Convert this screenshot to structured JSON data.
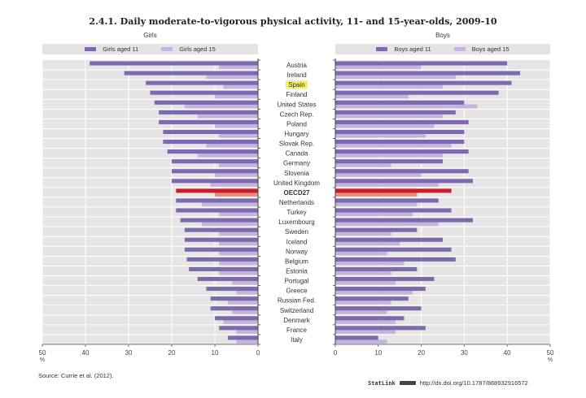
{
  "chart_data": {
    "type": "bar",
    "orientation": "horizontal",
    "title": "2.4.1. Daily moderate-to-vigorous physical activity, 11- and 15-year-olds, 2009-10",
    "unit_label": "%",
    "xlim": [
      0,
      50
    ],
    "x_ticks": [
      0,
      10,
      20,
      30,
      40,
      50
    ],
    "grid": true,
    "categories": [
      "Austria",
      "Ireland",
      "Spain",
      "Finland",
      "United States",
      "Czech Rep.",
      "Poland",
      "Hungary",
      "Slovak Rep.",
      "Canada",
      "Germany",
      "Slovenia",
      "United Kingdom",
      "OECD27",
      "Netherlands",
      "Turkey",
      "Luxembourg",
      "Sweden",
      "Iceland",
      "Norway",
      "Belgium",
      "Estonia",
      "Portugal",
      "Greece",
      "Russian Fed.",
      "Switzerland",
      "Denmark",
      "France",
      "Italy"
    ],
    "highlighted_category": "Spain",
    "average_category": "OECD27",
    "panels": [
      {
        "name": "Girls",
        "direction": "left",
        "legend_placement": "top",
        "series": [
          {
            "name": "Girls aged 11",
            "color": "#7d6aae",
            "average_color": "#c8202b",
            "values": [
              39,
              31,
              26,
              25,
              24,
              23,
              23,
              22,
              22,
              21,
              20,
              20,
              20,
              19,
              19,
              19,
              18,
              17,
              17,
              17,
              16.5,
              16,
              14,
              12,
              11,
              11,
              10,
              9,
              7
            ]
          },
          {
            "name": "Girls aged 15",
            "color": "#c4b5de",
            "average_color": "#f28a7a",
            "values": [
              9,
              12,
              8,
              10,
              17,
              14,
              10,
              9,
              12,
              14,
              9,
              10,
              11,
              10,
              13,
              9,
              13,
              9,
              9,
              9,
              9,
              9,
              6,
              5,
              7,
              6,
              8,
              5,
              5
            ]
          }
        ]
      },
      {
        "name": "Boys",
        "direction": "right",
        "legend_placement": "top",
        "series": [
          {
            "name": "Boys aged 11",
            "color": "#7d6aae",
            "average_color": "#c8202b",
            "values": [
              40,
              43,
              41,
              38,
              30,
              28,
              31,
              30,
              30,
              31,
              25,
              31,
              32,
              27,
              24,
              27,
              32,
              19,
              25,
              27,
              28,
              19,
              23,
              21,
              17,
              20,
              16,
              21,
              10
            ]
          },
          {
            "name": "Boys aged 15",
            "color": "#c4b5de",
            "average_color": "#f28a7a",
            "values": [
              20,
              28,
              25,
              17,
              33,
              25,
              23,
              21,
              27,
              25,
              13,
              20,
              24,
              19,
              19,
              18,
              24,
              13,
              15,
              12,
              16,
              13,
              14,
              18,
              13,
              12,
              14,
              14,
              12
            ]
          }
        ]
      }
    ]
  },
  "labels": {
    "title": "2.4.1. Daily moderate-to-vigorous physical activity, 11- and 15-year-olds, 2009-10",
    "girls_panel": "Girls",
    "boys_panel": "Boys",
    "legend_girls_11": "Girls aged 11",
    "legend_girls_15": "Girls aged 15",
    "legend_boys_11": "Boys aged 11",
    "legend_boys_15": "Boys aged 15",
    "percent": "%",
    "source": "Source:  Currie et al. (2012).",
    "statlink_brand": "StatLink",
    "statlink_url": "http://dx.doi.org/10.1787/888932916572"
  },
  "colors": {
    "plot_bg": "#e5e5e5",
    "grid": "#ffffff",
    "highlight": "#f3f06a",
    "dark_bar": "#7d6aae",
    "light_bar": "#c4b5de"
  }
}
